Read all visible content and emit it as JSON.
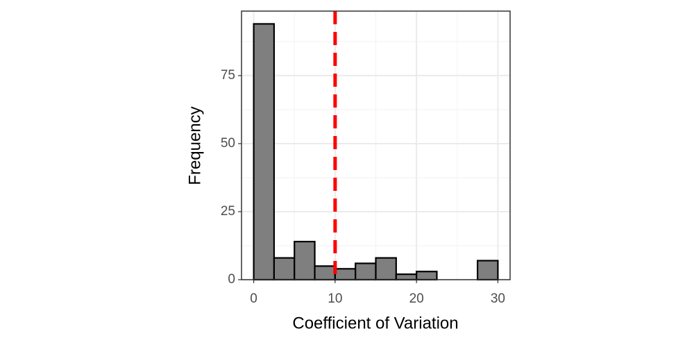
{
  "chart_data": {
    "type": "histogram",
    "x_label": "Coefficient of Variation",
    "y_label": "Frequency",
    "bins": [
      0,
      2.5,
      5,
      7.5,
      10,
      12.5,
      15,
      17.5,
      20,
      22.5,
      25,
      27.5,
      30
    ],
    "values": [
      94,
      8,
      14,
      5,
      4,
      6,
      8,
      2,
      3,
      0,
      0,
      7
    ],
    "color": "#7f7f7f",
    "edge_color": "#000000",
    "xlim": [
      -1.5,
      31.5
    ],
    "ylim": [
      0,
      98.7
    ],
    "xticks": [
      0,
      10,
      20,
      30
    ],
    "yticks": [
      0,
      25,
      50,
      75
    ],
    "x_minor_grid": [
      5,
      15,
      25
    ],
    "y_minor_grid": [
      12.5,
      37.5,
      62.5,
      87.5
    ],
    "grid": true,
    "vline": {
      "x": 10,
      "color": "#ff0000",
      "dashed": true
    }
  }
}
